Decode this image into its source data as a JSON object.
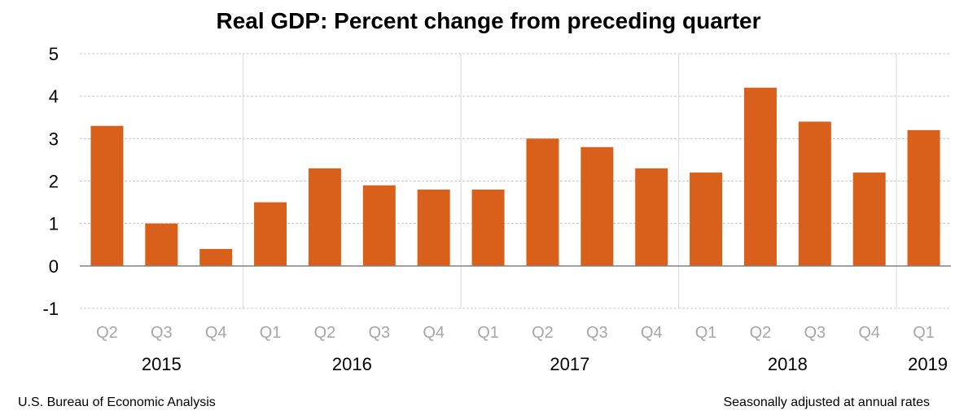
{
  "chart_data": {
    "type": "bar",
    "title": "Real GDP:  Percent change from preceding quarter",
    "categories": [
      "Q2",
      "Q3",
      "Q4",
      "Q1",
      "Q2",
      "Q3",
      "Q4",
      "Q1",
      "Q2",
      "Q3",
      "Q4",
      "Q1",
      "Q2",
      "Q3",
      "Q4",
      "Q1"
    ],
    "years": [
      {
        "label": "2015",
        "quarters": [
          "Q2",
          "Q3",
          "Q4"
        ]
      },
      {
        "label": "2016",
        "quarters": [
          "Q1",
          "Q2",
          "Q3",
          "Q4"
        ]
      },
      {
        "label": "2017",
        "quarters": [
          "Q1",
          "Q2",
          "Q3",
          "Q4"
        ]
      },
      {
        "label": "2018",
        "quarters": [
          "Q1",
          "Q2",
          "Q3",
          "Q4"
        ]
      },
      {
        "label": "2019",
        "quarters": [
          "Q1"
        ]
      }
    ],
    "values": [
      3.3,
      1.0,
      0.4,
      1.5,
      2.3,
      1.9,
      1.8,
      1.8,
      3.0,
      2.8,
      2.3,
      2.2,
      4.2,
      3.4,
      2.2,
      3.2
    ],
    "ylim": [
      -1,
      5
    ],
    "yticks": [
      -1,
      0,
      1,
      2,
      3,
      4,
      5
    ],
    "grid": true,
    "xlabel": "",
    "ylabel": "",
    "bar_color": "#D9601A",
    "tick_label_color": "#A6A6A6"
  },
  "footer": {
    "source": "U.S. Bureau of Economic Analysis",
    "note": "Seasonally adjusted at annual rates"
  }
}
